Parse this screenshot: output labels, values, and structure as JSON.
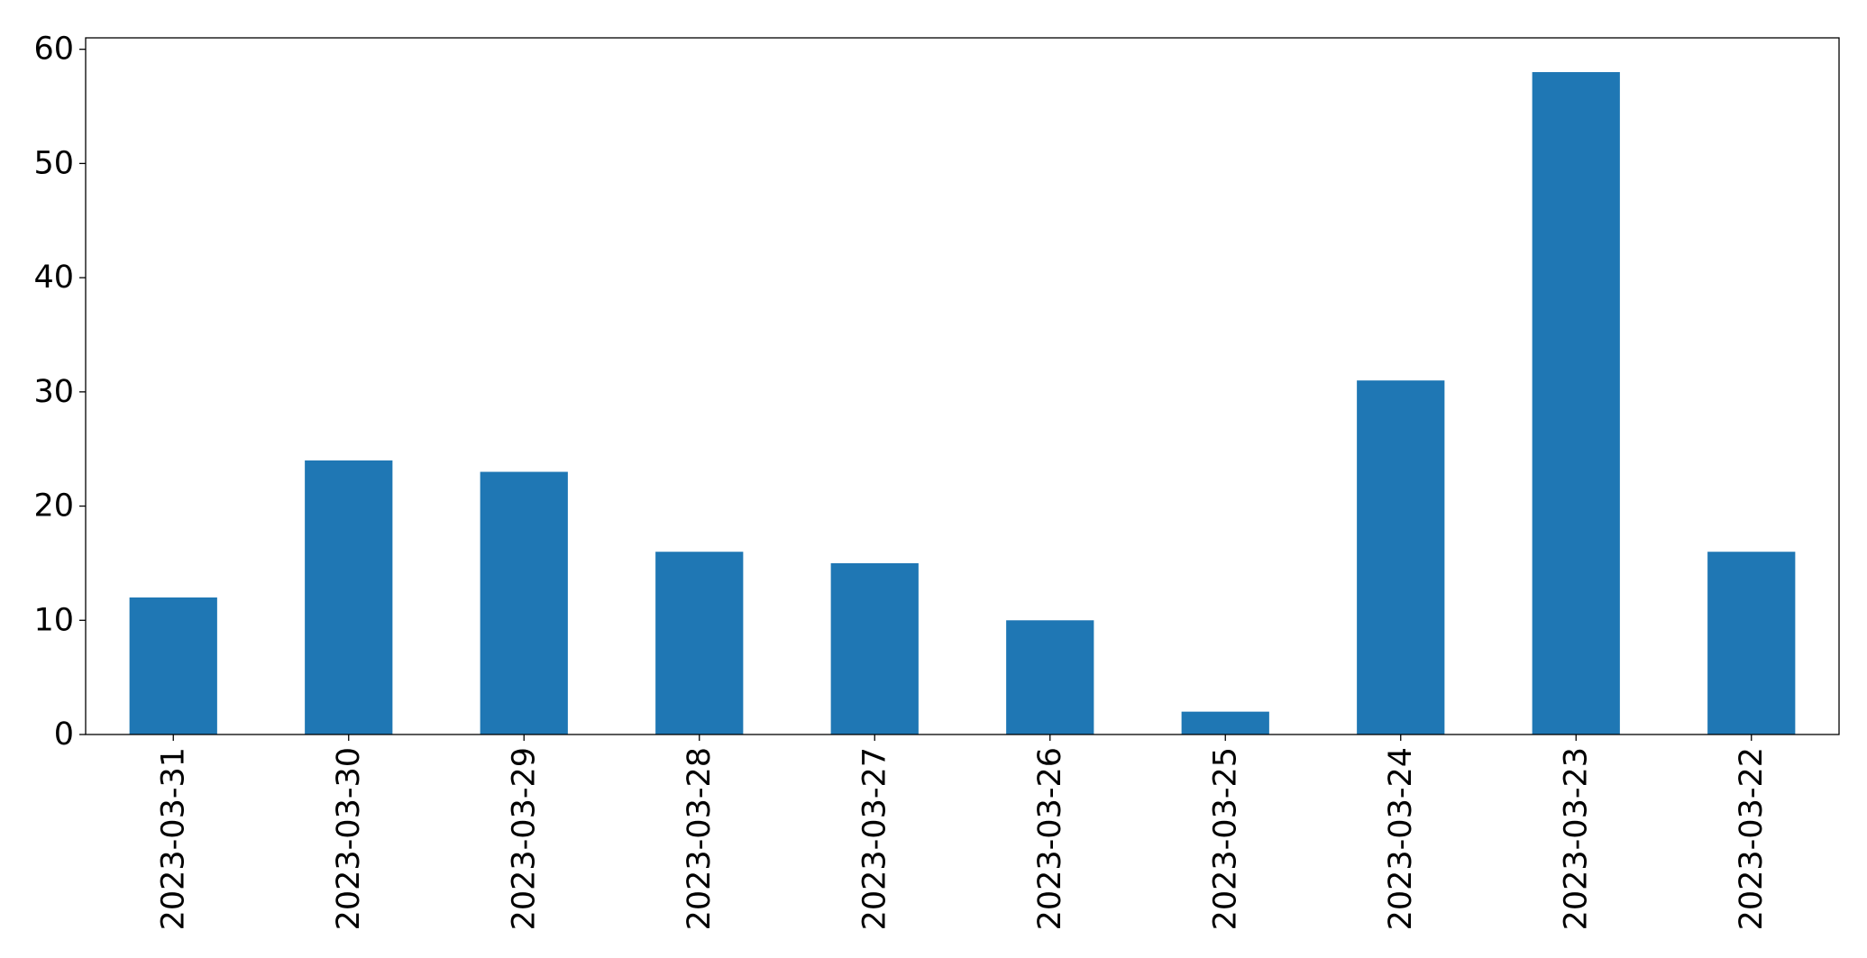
{
  "chart_data": {
    "type": "bar",
    "title": "",
    "xlabel": "",
    "ylabel": "",
    "categories": [
      "2023-03-31",
      "2023-03-30",
      "2023-03-29",
      "2023-03-28",
      "2023-03-27",
      "2023-03-26",
      "2023-03-25",
      "2023-03-24",
      "2023-03-23",
      "2023-03-22"
    ],
    "values": [
      12,
      24,
      23,
      16,
      15,
      10,
      2,
      31,
      58,
      16
    ],
    "ylim": [
      0,
      61
    ],
    "yticks": [
      "0",
      "10",
      "20",
      "30",
      "40",
      "50",
      "60"
    ],
    "grid": false,
    "legend": "none",
    "bar_color": "#1f77b4"
  }
}
